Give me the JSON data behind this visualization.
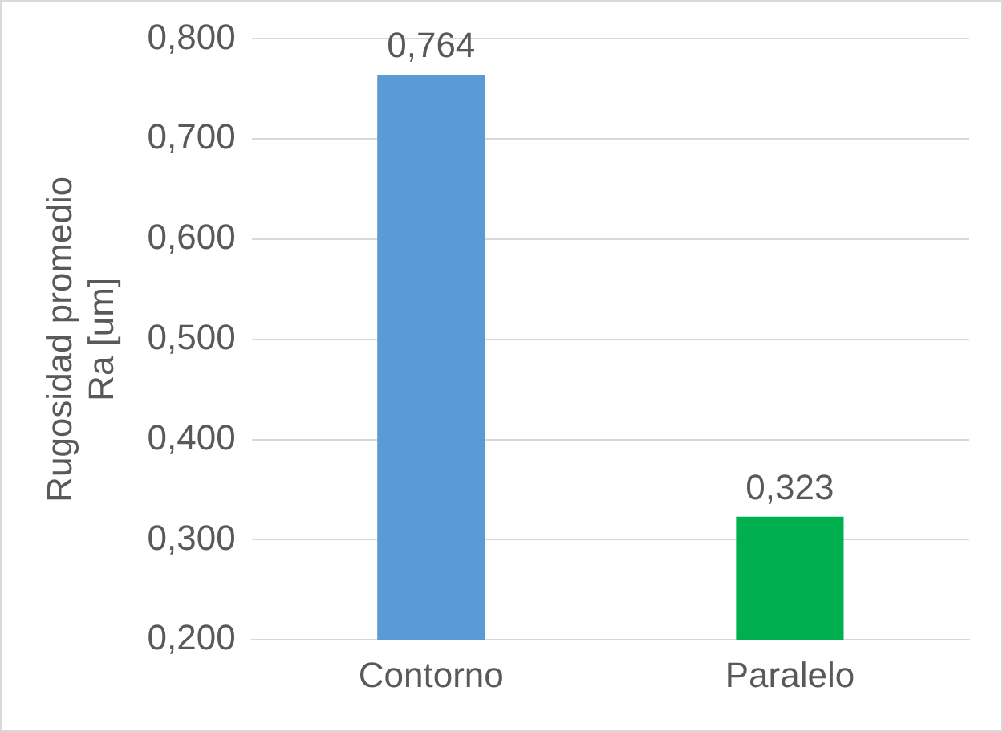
{
  "chart_data": {
    "type": "bar",
    "ylabel": "Rugosidad promedio Ra [um]",
    "categories": [
      "Contorno",
      "Paralelo"
    ],
    "values": [
      0.764,
      0.323
    ],
    "colors": [
      "#5b9bd5",
      "#00b050"
    ],
    "value_labels": [
      "0,764",
      "0,323"
    ],
    "ylim": [
      0.2,
      0.8
    ],
    "yticks": [
      {
        "value": 0.2,
        "label": "0,200"
      },
      {
        "value": 0.3,
        "label": "0,300"
      },
      {
        "value": 0.4,
        "label": "0,400"
      },
      {
        "value": 0.5,
        "label": "0,500"
      },
      {
        "value": 0.6,
        "label": "0,600"
      },
      {
        "value": 0.7,
        "label": "0,700"
      },
      {
        "value": 0.8,
        "label": "0,800"
      }
    ],
    "grid": "y",
    "legend": false
  }
}
